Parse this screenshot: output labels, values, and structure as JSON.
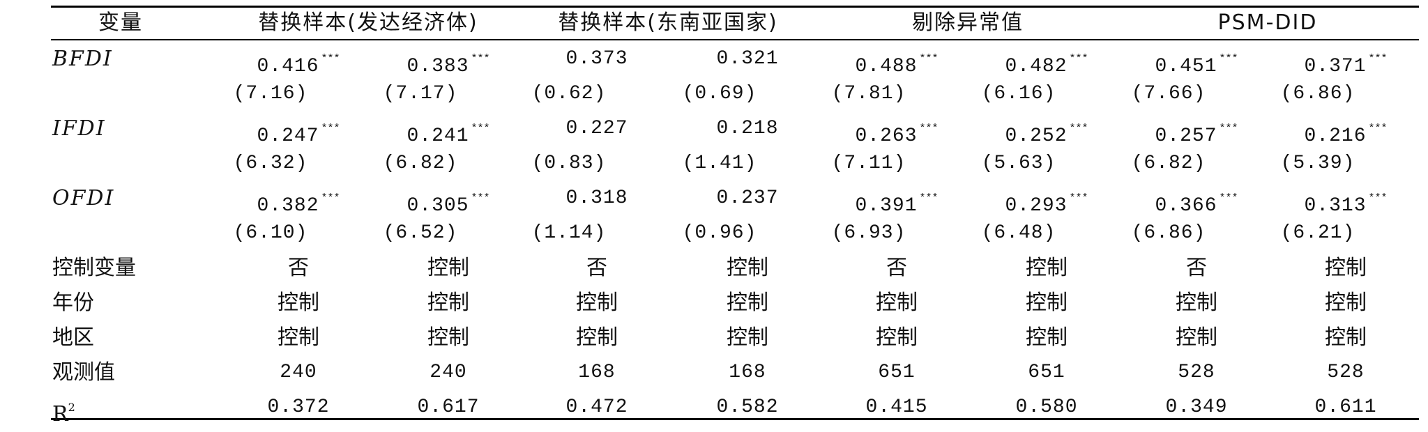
{
  "table": {
    "header": {
      "variable": "变量",
      "groups": [
        "替换样本(发达经济体)",
        "替换样本(东南亚国家)",
        "剔除异常值",
        "PSM-DID"
      ]
    },
    "coef_rows": [
      {
        "label": "BFDI",
        "coefs": [
          {
            "v": "0.416",
            "s": "***"
          },
          {
            "v": "0.383",
            "s": "***"
          },
          {
            "v": "0.373",
            "s": ""
          },
          {
            "v": "0.321",
            "s": ""
          },
          {
            "v": "0.488",
            "s": "***"
          },
          {
            "v": "0.482",
            "s": "***"
          },
          {
            "v": "0.451",
            "s": "***"
          },
          {
            "v": "0.371",
            "s": "***"
          }
        ],
        "t": [
          "(7.16)",
          "(7.17)",
          "(0.62)",
          "(0.69)",
          "(7.81)",
          "(6.16)",
          "(7.66)",
          "(6.86)"
        ]
      },
      {
        "label": "IFDI",
        "coefs": [
          {
            "v": "0.247",
            "s": "***"
          },
          {
            "v": "0.241",
            "s": "***"
          },
          {
            "v": "0.227",
            "s": ""
          },
          {
            "v": "0.218",
            "s": ""
          },
          {
            "v": "0.263",
            "s": "***"
          },
          {
            "v": "0.252",
            "s": "***"
          },
          {
            "v": "0.257",
            "s": "***"
          },
          {
            "v": "0.216",
            "s": "***"
          }
        ],
        "t": [
          "(6.32)",
          "(6.82)",
          "(0.83)",
          "(1.41)",
          "(7.11)",
          "(5.63)",
          "(6.82)",
          "(5.39)"
        ]
      },
      {
        "label": "OFDI",
        "coefs": [
          {
            "v": "0.382",
            "s": "***"
          },
          {
            "v": "0.305",
            "s": "***"
          },
          {
            "v": "0.318",
            "s": ""
          },
          {
            "v": "0.237",
            "s": ""
          },
          {
            "v": "0.391",
            "s": "***"
          },
          {
            "v": "0.293",
            "s": "***"
          },
          {
            "v": "0.366",
            "s": "***"
          },
          {
            "v": "0.313",
            "s": "***"
          }
        ],
        "t": [
          "(6.10)",
          "(6.52)",
          "(1.14)",
          "(0.96)",
          "(6.93)",
          "(6.48)",
          "(6.86)",
          "(6.21)"
        ]
      }
    ],
    "text_rows": [
      {
        "label": "控制变量",
        "values": [
          "否",
          "控制",
          "否",
          "控制",
          "否",
          "控制",
          "否",
          "控制"
        ]
      },
      {
        "label": "年份",
        "values": [
          "控制",
          "控制",
          "控制",
          "控制",
          "控制",
          "控制",
          "控制",
          "控制"
        ]
      },
      {
        "label": "地区",
        "values": [
          "控制",
          "控制",
          "控制",
          "控制",
          "控制",
          "控制",
          "控制",
          "控制"
        ]
      },
      {
        "label": "观测值",
        "values": [
          "240",
          "240",
          "168",
          "168",
          "651",
          "651",
          "528",
          "528"
        ]
      }
    ],
    "r2_row": {
      "label_base": "R",
      "label_sup": "2",
      "values": [
        "0.372",
        "0.617",
        "0.472",
        "0.582",
        "0.415",
        "0.580",
        "0.349",
        "0.611"
      ]
    }
  }
}
